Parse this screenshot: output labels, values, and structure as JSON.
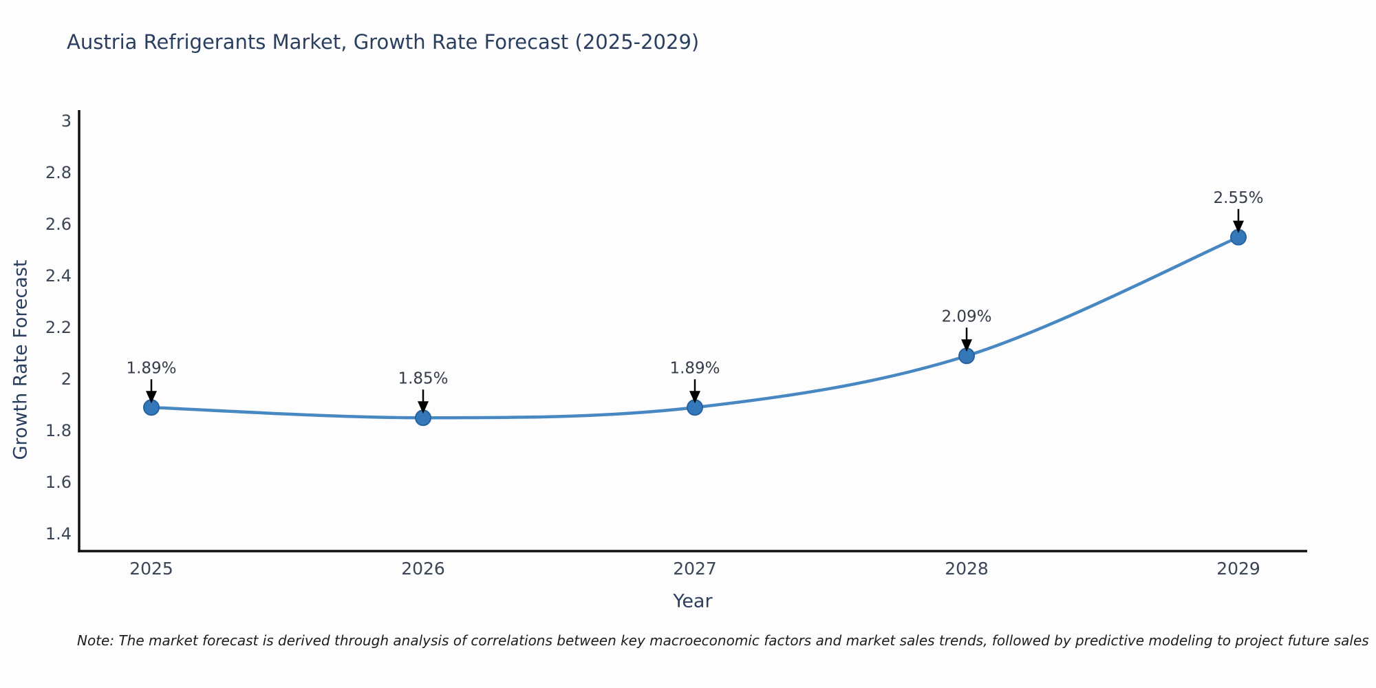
{
  "page": {
    "background": "#fdfdfd",
    "note": "Note: The market forecast is derived through analysis of correlations between key macroeconomic factors and market sales trends, followed by predictive modeling to project future sales"
  },
  "chart_data": {
    "type": "line",
    "title": "Austria Refrigerants Market, Growth Rate Forecast (2025-2029)",
    "xlabel": "Year",
    "ylabel": "Growth Rate Forecast",
    "x": [
      2025,
      2026,
      2027,
      2028,
      2029
    ],
    "x_labels": [
      "2025",
      "2026",
      "2027",
      "2028",
      "2029"
    ],
    "series": [
      {
        "name": "Growth Rate Forecast",
        "values": [
          1.89,
          1.85,
          1.89,
          2.09,
          2.55
        ]
      }
    ],
    "point_labels": [
      "1.89%",
      "1.85%",
      "1.89%",
      "2.09%",
      "2.55%"
    ],
    "ytick_values": [
      3,
      2.8,
      2.6,
      2.4,
      2.2,
      2,
      1.8,
      1.6,
      1.4
    ],
    "ytick_labels": [
      "3",
      "2.8",
      "2.6",
      "2.4",
      "2.2",
      "2",
      "1.8",
      "1.6",
      "1.4"
    ],
    "ylim": [
      1.33,
      3.04
    ],
    "grid": false,
    "legend": false,
    "line_shape": "spline",
    "annotation_style": "black-down-arrow",
    "colors": {
      "line": "#4787c2",
      "marker": "#3478b9",
      "marker_edge": "#26639e",
      "axis_line": "#101010",
      "title_text": "#2a3f5f",
      "tick_text": "#3b4556",
      "annotation_text": "#343c49",
      "arrow": "#000000",
      "note_text": "#1c1c1c"
    }
  }
}
